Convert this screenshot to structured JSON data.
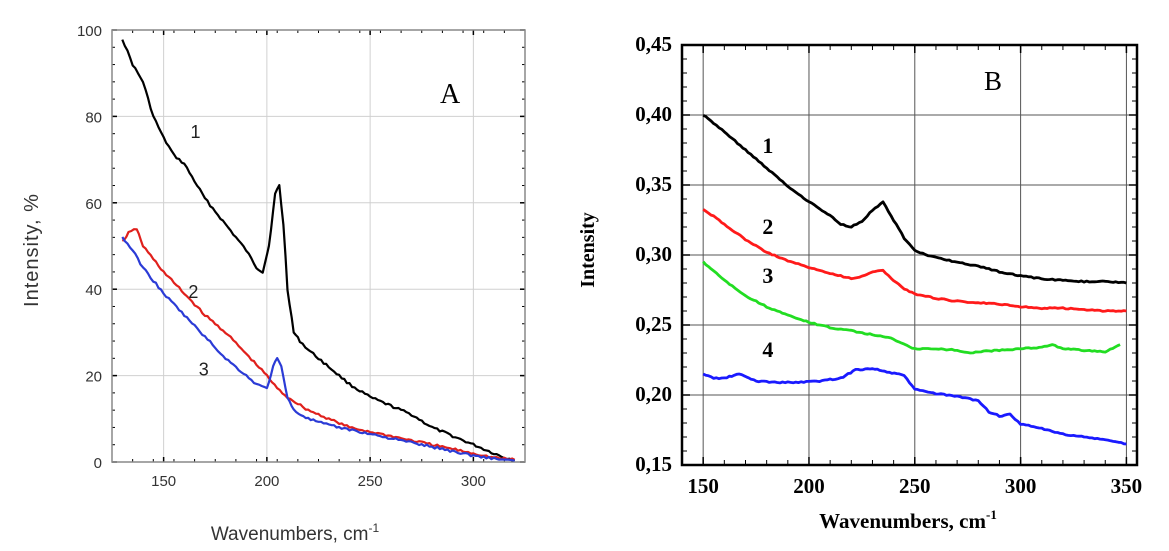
{
  "chart_data": [
    {
      "type": "line",
      "panel_label": "A",
      "xlabel": "Wavenumbers, cm",
      "xlabel_sup": "-1",
      "ylabel": "Intensity, %",
      "xlim": [
        125,
        325
      ],
      "ylim": [
        0,
        100
      ],
      "xticks": [
        "150",
        "200",
        "250",
        "300"
      ],
      "yticks": [
        "0",
        "20",
        "40",
        "60",
        "80",
        "100"
      ],
      "grid": true,
      "series": [
        {
          "name": "1",
          "color": "#000000",
          "x": [
            130,
            135,
            140,
            145,
            150,
            155,
            160,
            165,
            170,
            175,
            180,
            185,
            190,
            195,
            198,
            201,
            204,
            206,
            208,
            210,
            213,
            216,
            220,
            230,
            240,
            250,
            260,
            270,
            280,
            290,
            300,
            305,
            310,
            315,
            320
          ],
          "y": [
            98,
            92,
            88,
            80,
            75,
            71,
            69,
            65,
            61,
            58,
            55,
            52,
            49,
            45,
            44,
            50,
            62,
            64,
            55,
            40,
            30,
            28,
            26,
            22,
            18,
            15,
            13,
            11,
            8,
            6,
            4,
            3,
            2,
            1,
            0.5
          ]
        },
        {
          "name": "2",
          "color": "#e0201c",
          "x": [
            130,
            133,
            137,
            140,
            145,
            150,
            160,
            170,
            180,
            190,
            200,
            205,
            210,
            220,
            230,
            240,
            250,
            260,
            270,
            280,
            290,
            300,
            310,
            320
          ],
          "y": [
            51,
            53,
            54,
            50,
            47,
            44,
            39,
            34,
            30,
            25,
            20,
            17,
            15,
            12,
            10,
            8,
            7,
            6,
            5,
            4,
            3,
            2,
            1,
            0.5
          ]
        },
        {
          "name": "3",
          "color": "#2b3bd6",
          "x": [
            130,
            135,
            140,
            145,
            150,
            160,
            170,
            180,
            190,
            195,
            200,
            203,
            205,
            207,
            210,
            213,
            220,
            230,
            240,
            250,
            260,
            270,
            280,
            290,
            300,
            310,
            320
          ],
          "y": [
            52,
            49,
            45,
            42,
            39,
            34,
            29,
            24,
            20,
            18,
            17,
            22,
            24,
            22,
            15,
            12,
            10,
            8.5,
            7.5,
            6.5,
            5.5,
            4.5,
            3.5,
            2.5,
            1.5,
            0.8,
            0.3
          ]
        }
      ],
      "annotations": [
        {
          "text": "1",
          "x": 163,
          "y": 75
        },
        {
          "text": "2",
          "x": 162,
          "y": 38
        },
        {
          "text": "3",
          "x": 167,
          "y": 20
        }
      ]
    },
    {
      "type": "line",
      "panel_label": "B",
      "xlabel": "Wavenumbers, cm",
      "xlabel_sup": "-1",
      "ylabel": "Intensity",
      "xlim": [
        140,
        355
      ],
      "ylim": [
        0.15,
        0.45
      ],
      "xticks": [
        "150",
        "200",
        "250",
        "300",
        "350"
      ],
      "yticks": [
        "0,15",
        "0,20",
        "0,25",
        "0,30",
        "0,35",
        "0,40",
        "0,45"
      ],
      "grid": true,
      "series": [
        {
          "name": "1",
          "color": "#000000",
          "x": [
            150,
            160,
            170,
            180,
            190,
            200,
            210,
            215,
            220,
            225,
            230,
            235,
            240,
            245,
            250,
            260,
            270,
            280,
            290,
            300,
            310,
            320,
            330,
            340,
            350
          ],
          "y": [
            0.4,
            0.388,
            0.375,
            0.362,
            0.349,
            0.338,
            0.328,
            0.322,
            0.32,
            0.324,
            0.332,
            0.338,
            0.325,
            0.312,
            0.303,
            0.298,
            0.295,
            0.292,
            0.288,
            0.285,
            0.283,
            0.282,
            0.281,
            0.281,
            0.28
          ]
        },
        {
          "name": "2",
          "color": "#ff1a1a",
          "x": [
            150,
            160,
            170,
            180,
            190,
            200,
            210,
            220,
            225,
            230,
            235,
            240,
            245,
            250,
            260,
            270,
            280,
            290,
            300,
            310,
            320,
            330,
            340,
            350
          ],
          "y": [
            0.333,
            0.322,
            0.311,
            0.302,
            0.296,
            0.291,
            0.287,
            0.283,
            0.285,
            0.288,
            0.289,
            0.282,
            0.276,
            0.272,
            0.269,
            0.267,
            0.266,
            0.265,
            0.263,
            0.262,
            0.262,
            0.261,
            0.26,
            0.26
          ]
        },
        {
          "name": "3",
          "color": "#22dd22",
          "x": [
            150,
            160,
            170,
            180,
            190,
            200,
            210,
            220,
            230,
            240,
            245,
            250,
            260,
            270,
            275,
            280,
            290,
            300,
            310,
            315,
            320,
            330,
            340,
            347
          ],
          "y": [
            0.295,
            0.282,
            0.271,
            0.263,
            0.257,
            0.252,
            0.248,
            0.246,
            0.243,
            0.24,
            0.236,
            0.233,
            0.233,
            0.232,
            0.23,
            0.231,
            0.232,
            0.233,
            0.234,
            0.236,
            0.233,
            0.232,
            0.231,
            0.236
          ]
        },
        {
          "name": "4",
          "color": "#1a1aff",
          "x": [
            150,
            155,
            160,
            167,
            175,
            185,
            195,
            205,
            215,
            222,
            230,
            238,
            245,
            250,
            260,
            270,
            280,
            285,
            290,
            295,
            300,
            305,
            310,
            320,
            330,
            340,
            350
          ],
          "y": [
            0.215,
            0.212,
            0.212,
            0.215,
            0.21,
            0.209,
            0.209,
            0.21,
            0.212,
            0.218,
            0.219,
            0.216,
            0.214,
            0.204,
            0.201,
            0.199,
            0.196,
            0.188,
            0.185,
            0.186,
            0.179,
            0.178,
            0.176,
            0.172,
            0.17,
            0.168,
            0.165
          ]
        }
      ],
      "annotations": [
        {
          "text": "1",
          "x": 178,
          "y": 0.373
        },
        {
          "text": "2",
          "x": 178,
          "y": 0.315
        },
        {
          "text": "3",
          "x": 178,
          "y": 0.28
        },
        {
          "text": "4",
          "x": 178,
          "y": 0.227
        }
      ]
    }
  ]
}
